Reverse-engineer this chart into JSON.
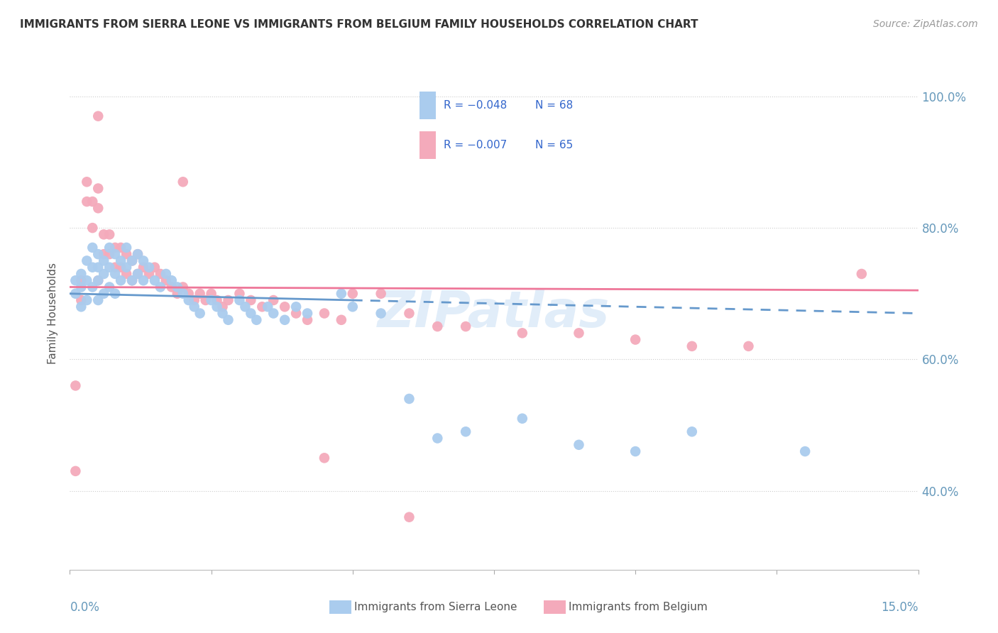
{
  "title": "IMMIGRANTS FROM SIERRA LEONE VS IMMIGRANTS FROM BELGIUM FAMILY HOUSEHOLDS CORRELATION CHART",
  "source": "Source: ZipAtlas.com",
  "ylabel": "Family Households",
  "color_sierra": "#aaccee",
  "color_belgium": "#f4aabb",
  "color_trendline_sierra": "#6699cc",
  "color_trendline_belgium": "#ee7799",
  "color_axis_labels": "#6699bb",
  "color_watermark": "#99bbdd",
  "xlim": [
    0.0,
    0.15
  ],
  "ylim": [
    0.28,
    1.06
  ],
  "yticks": [
    0.4,
    0.6,
    0.8,
    1.0
  ],
  "ytick_labels": [
    "40.0%",
    "60.0%",
    "80.0%",
    "100.0%"
  ],
  "legend_entries": [
    {
      "label": "R = −0.048   N = 68",
      "color": "#aaccee"
    },
    {
      "label": "R = −0.007   N = 65",
      "color": "#f4aabb"
    }
  ],
  "sierra_leone_x": [
    0.001,
    0.001,
    0.002,
    0.002,
    0.002,
    0.003,
    0.003,
    0.003,
    0.004,
    0.004,
    0.004,
    0.005,
    0.005,
    0.005,
    0.005,
    0.006,
    0.006,
    0.006,
    0.007,
    0.007,
    0.007,
    0.008,
    0.008,
    0.008,
    0.009,
    0.009,
    0.01,
    0.01,
    0.011,
    0.011,
    0.012,
    0.012,
    0.013,
    0.013,
    0.014,
    0.015,
    0.016,
    0.017,
    0.018,
    0.019,
    0.02,
    0.021,
    0.022,
    0.023,
    0.025,
    0.026,
    0.027,
    0.028,
    0.03,
    0.031,
    0.032,
    0.033,
    0.035,
    0.036,
    0.038,
    0.04,
    0.042,
    0.048,
    0.05,
    0.055,
    0.06,
    0.065,
    0.07,
    0.08,
    0.09,
    0.1,
    0.11,
    0.13
  ],
  "sierra_leone_y": [
    0.72,
    0.7,
    0.73,
    0.71,
    0.68,
    0.75,
    0.72,
    0.69,
    0.77,
    0.74,
    0.71,
    0.76,
    0.74,
    0.72,
    0.69,
    0.75,
    0.73,
    0.7,
    0.77,
    0.74,
    0.71,
    0.76,
    0.73,
    0.7,
    0.75,
    0.72,
    0.77,
    0.74,
    0.75,
    0.72,
    0.76,
    0.73,
    0.75,
    0.72,
    0.74,
    0.72,
    0.71,
    0.73,
    0.72,
    0.71,
    0.7,
    0.69,
    0.68,
    0.67,
    0.69,
    0.68,
    0.67,
    0.66,
    0.69,
    0.68,
    0.67,
    0.66,
    0.68,
    0.67,
    0.66,
    0.68,
    0.67,
    0.7,
    0.68,
    0.67,
    0.54,
    0.48,
    0.49,
    0.51,
    0.47,
    0.46,
    0.49,
    0.46
  ],
  "belgium_x": [
    0.001,
    0.001,
    0.002,
    0.002,
    0.003,
    0.003,
    0.004,
    0.004,
    0.005,
    0.005,
    0.005,
    0.006,
    0.006,
    0.007,
    0.007,
    0.008,
    0.008,
    0.009,
    0.009,
    0.01,
    0.01,
    0.011,
    0.011,
    0.012,
    0.012,
    0.013,
    0.014,
    0.015,
    0.016,
    0.017,
    0.018,
    0.019,
    0.02,
    0.021,
    0.022,
    0.023,
    0.024,
    0.025,
    0.026,
    0.027,
    0.028,
    0.03,
    0.032,
    0.034,
    0.036,
    0.038,
    0.04,
    0.042,
    0.045,
    0.048,
    0.05,
    0.055,
    0.06,
    0.065,
    0.07,
    0.08,
    0.09,
    0.1,
    0.11,
    0.12,
    0.14,
    0.005,
    0.02,
    0.045,
    0.06
  ],
  "belgium_y": [
    0.56,
    0.43,
    0.72,
    0.69,
    0.87,
    0.84,
    0.84,
    0.8,
    0.86,
    0.83,
    0.72,
    0.79,
    0.76,
    0.79,
    0.76,
    0.77,
    0.74,
    0.77,
    0.74,
    0.76,
    0.73,
    0.75,
    0.72,
    0.76,
    0.73,
    0.74,
    0.73,
    0.74,
    0.73,
    0.72,
    0.71,
    0.7,
    0.71,
    0.7,
    0.69,
    0.7,
    0.69,
    0.7,
    0.69,
    0.68,
    0.69,
    0.7,
    0.69,
    0.68,
    0.69,
    0.68,
    0.67,
    0.66,
    0.67,
    0.66,
    0.7,
    0.7,
    0.67,
    0.65,
    0.65,
    0.64,
    0.64,
    0.63,
    0.62,
    0.62,
    0.73,
    0.97,
    0.87,
    0.45,
    0.36
  ],
  "trendline_sl_x0": 0.0,
  "trendline_sl_x1": 0.15,
  "trendline_sl_y0": 0.7,
  "trendline_sl_y1": 0.67,
  "trendline_sl_dash_start": 0.05,
  "trendline_be_x0": 0.0,
  "trendline_be_x1": 0.15,
  "trendline_be_y0": 0.71,
  "trendline_be_y1": 0.705,
  "watermark_text": "ZIPatlas",
  "watermark_fontsize": 52,
  "watermark_color": "#aaccee",
  "watermark_alpha": 0.35
}
